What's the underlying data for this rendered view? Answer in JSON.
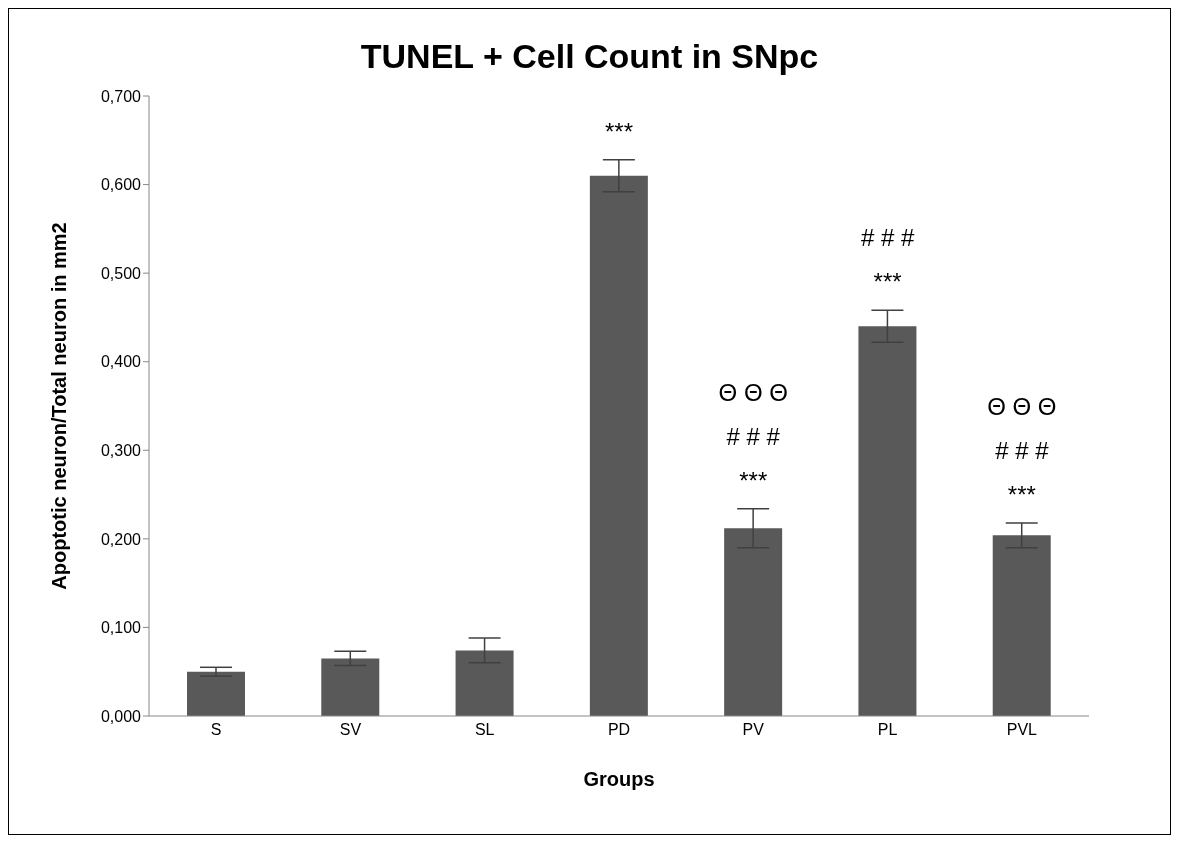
{
  "chart_data": {
    "type": "bar",
    "title": "TUNEL + Cell Count in SNpc",
    "xlabel": "Groups",
    "ylabel": "Apoptotic neuron/Total neuron in mm2",
    "categories": [
      "S",
      "SV",
      "SL",
      "PD",
      "PV",
      "PL",
      "PVL"
    ],
    "values": [
      0.05,
      0.065,
      0.074,
      0.61,
      0.212,
      0.44,
      0.204
    ],
    "errors": [
      0.005,
      0.008,
      0.014,
      0.018,
      0.022,
      0.018,
      0.014
    ],
    "color": "#595959",
    "ylim": [
      0,
      0.7
    ],
    "yticks": [
      {
        "value": 0,
        "label": "0,000"
      },
      {
        "value": 0.1,
        "label": "0,100"
      },
      {
        "value": 0.2,
        "label": "0,200"
      },
      {
        "value": 0.3,
        "label": "0,300"
      },
      {
        "value": 0.4,
        "label": "0,400"
      },
      {
        "value": 0.5,
        "label": "0,500"
      },
      {
        "value": 0.6,
        "label": "0,600"
      },
      {
        "value": 0.7,
        "label": "0,700"
      }
    ],
    "annotations": [
      {
        "text": "***",
        "x": "PD",
        "y": 0.61
      },
      {
        "text": "Θ Θ Θ\n# # #\n***",
        "x": "PV",
        "y": 0.212
      },
      {
        "text": "# # #\n***",
        "x": "PL",
        "y": 0.44
      },
      {
        "text": "Θ Θ Θ\n# # #\n***",
        "x": "PVL",
        "y": 0.204
      }
    ]
  }
}
